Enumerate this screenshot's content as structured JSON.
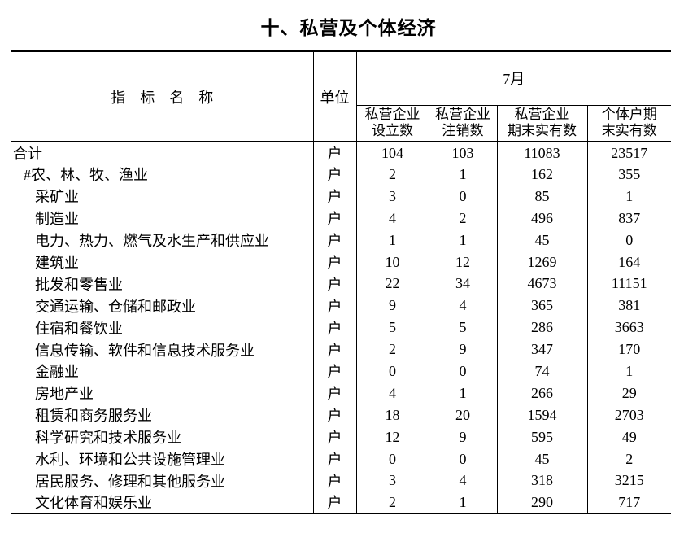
{
  "page_title": "十、私营及个体经济",
  "colors": {
    "text": "#000000",
    "background": "#ffffff",
    "rule_line": "#000000"
  },
  "table": {
    "header": {
      "indicator": "指　标　名　称",
      "unit": "单位",
      "period": "7月",
      "subcolumns": [
        {
          "line1": "私营企业",
          "line2": "设立数"
        },
        {
          "line1": "私营企业",
          "line2": "注销数"
        },
        {
          "line1": "私营企业",
          "line2": "期末实有数"
        },
        {
          "line1": "个体户期",
          "line2": "末实有数"
        }
      ]
    },
    "rows": [
      {
        "name": "合计",
        "indent": 0,
        "unit": "户",
        "values": [
          104,
          103,
          11083,
          23517
        ]
      },
      {
        "name": "#农、林、牧、渔业",
        "indent": 1,
        "unit": "户",
        "values": [
          2,
          1,
          162,
          355
        ]
      },
      {
        "name": "采矿业",
        "indent": 2,
        "unit": "户",
        "values": [
          3,
          0,
          85,
          1
        ]
      },
      {
        "name": "制造业",
        "indent": 2,
        "unit": "户",
        "values": [
          4,
          2,
          496,
          837
        ]
      },
      {
        "name": "电力、热力、燃气及水生产和供应业",
        "indent": 2,
        "unit": "户",
        "values": [
          1,
          1,
          45,
          0
        ]
      },
      {
        "name": "建筑业",
        "indent": 2,
        "unit": "户",
        "values": [
          10,
          12,
          1269,
          164
        ]
      },
      {
        "name": "批发和零售业",
        "indent": 2,
        "unit": "户",
        "values": [
          22,
          34,
          4673,
          11151
        ]
      },
      {
        "name": "交通运输、仓储和邮政业",
        "indent": 2,
        "unit": "户",
        "values": [
          9,
          4,
          365,
          381
        ]
      },
      {
        "name": "住宿和餐饮业",
        "indent": 2,
        "unit": "户",
        "values": [
          5,
          5,
          286,
          3663
        ]
      },
      {
        "name": "信息传输、软件和信息技术服务业",
        "indent": 2,
        "unit": "户",
        "values": [
          2,
          9,
          347,
          170
        ]
      },
      {
        "name": "金融业",
        "indent": 2,
        "unit": "户",
        "values": [
          0,
          0,
          74,
          1
        ]
      },
      {
        "name": "房地产业",
        "indent": 2,
        "unit": "户",
        "values": [
          4,
          1,
          266,
          29
        ]
      },
      {
        "name": "租赁和商务服务业",
        "indent": 2,
        "unit": "户",
        "values": [
          18,
          20,
          1594,
          2703
        ]
      },
      {
        "name": "科学研究和技术服务业",
        "indent": 2,
        "unit": "户",
        "values": [
          12,
          9,
          595,
          49
        ]
      },
      {
        "name": "水利、环境和公共设施管理业",
        "indent": 2,
        "unit": "户",
        "values": [
          0,
          0,
          45,
          2
        ]
      },
      {
        "name": "居民服务、修理和其他服务业",
        "indent": 2,
        "unit": "户",
        "values": [
          3,
          4,
          318,
          3215
        ]
      },
      {
        "name": "文化体育和娱乐业",
        "indent": 2,
        "unit": "户",
        "values": [
          2,
          1,
          290,
          717
        ]
      }
    ]
  }
}
